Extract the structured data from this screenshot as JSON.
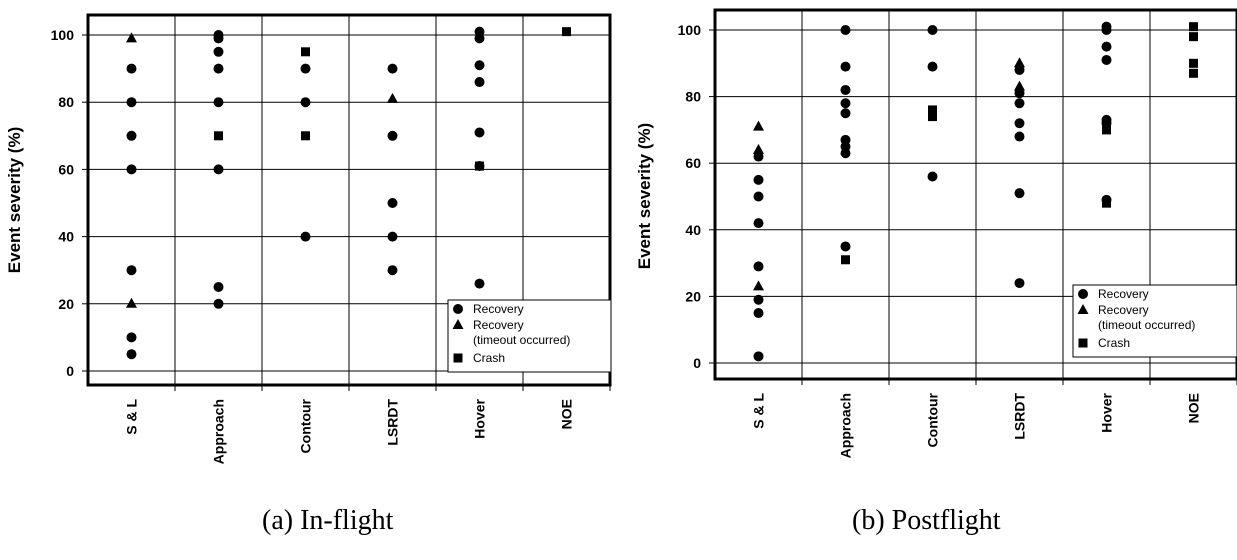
{
  "chart_data": [
    {
      "type": "scatter",
      "title": "",
      "caption": "(a)  In-flight",
      "xlabel": "",
      "ylabel": "Event severity (%)",
      "ylim": [
        0,
        100
      ],
      "yticks": [
        "0",
        "20",
        "40",
        "60",
        "80",
        "100"
      ],
      "categories": [
        "S & L",
        "Approach",
        "Contour",
        "LSRDT",
        "Hover",
        "NOE"
      ],
      "grid": true,
      "legend_position": "bottom-right",
      "series": [
        {
          "name": "Recovery",
          "marker": "circle",
          "points": [
            {
              "x": "S & L",
              "y": 5
            },
            {
              "x": "S & L",
              "y": 10
            },
            {
              "x": "S & L",
              "y": 30
            },
            {
              "x": "S & L",
              "y": 60
            },
            {
              "x": "S & L",
              "y": 70
            },
            {
              "x": "S & L",
              "y": 80
            },
            {
              "x": "S & L",
              "y": 90
            },
            {
              "x": "Approach",
              "y": 20
            },
            {
              "x": "Approach",
              "y": 25
            },
            {
              "x": "Approach",
              "y": 60
            },
            {
              "x": "Approach",
              "y": 80
            },
            {
              "x": "Approach",
              "y": 90
            },
            {
              "x": "Approach",
              "y": 95
            },
            {
              "x": "Approach",
              "y": 99
            },
            {
              "x": "Approach",
              "y": 100
            },
            {
              "x": "Contour",
              "y": 40
            },
            {
              "x": "Contour",
              "y": 80
            },
            {
              "x": "Contour",
              "y": 90
            },
            {
              "x": "LSRDT",
              "y": 30
            },
            {
              "x": "LSRDT",
              "y": 40
            },
            {
              "x": "LSRDT",
              "y": 50
            },
            {
              "x": "LSRDT",
              "y": 70
            },
            {
              "x": "LSRDT",
              "y": 90
            },
            {
              "x": "Hover",
              "y": 26
            },
            {
              "x": "Hover",
              "y": 61
            },
            {
              "x": "Hover",
              "y": 71
            },
            {
              "x": "Hover",
              "y": 86
            },
            {
              "x": "Hover",
              "y": 91
            },
            {
              "x": "Hover",
              "y": 99
            },
            {
              "x": "Hover",
              "y": 101
            }
          ]
        },
        {
          "name": "Recovery (timeout occurred)",
          "marker": "triangle",
          "points": [
            {
              "x": "S & L",
              "y": 20
            },
            {
              "x": "S & L",
              "y": 99
            },
            {
              "x": "LSRDT",
              "y": 81
            }
          ]
        },
        {
          "name": "Crash",
          "marker": "square",
          "points": [
            {
              "x": "Approach",
              "y": 70
            },
            {
              "x": "Contour",
              "y": 70
            },
            {
              "x": "Contour",
              "y": 95
            },
            {
              "x": "Hover",
              "y": 61
            },
            {
              "x": "NOE",
              "y": 101
            }
          ]
        }
      ],
      "legend": [
        "Recovery",
        "Recovery",
        "(timeout occurred)",
        "Crash"
      ]
    },
    {
      "type": "scatter",
      "title": "",
      "caption": "(b)  Postflight",
      "xlabel": "",
      "ylabel": "Event severity (%)",
      "ylim": [
        0,
        100
      ],
      "yticks": [
        "0",
        "20",
        "40",
        "60",
        "80",
        "100"
      ],
      "categories": [
        "S & L",
        "Approach",
        "Contour",
        "LSRDT",
        "Hover",
        "NOE"
      ],
      "grid": true,
      "legend_position": "bottom-right",
      "series": [
        {
          "name": "Recovery",
          "marker": "circle",
          "points": [
            {
              "x": "S & L",
              "y": 2
            },
            {
              "x": "S & L",
              "y": 15
            },
            {
              "x": "S & L",
              "y": 19
            },
            {
              "x": "S & L",
              "y": 29
            },
            {
              "x": "S & L",
              "y": 42
            },
            {
              "x": "S & L",
              "y": 50
            },
            {
              "x": "S & L",
              "y": 55
            },
            {
              "x": "S & L",
              "y": 62
            },
            {
              "x": "Approach",
              "y": 35
            },
            {
              "x": "Approach",
              "y": 63
            },
            {
              "x": "Approach",
              "y": 65
            },
            {
              "x": "Approach",
              "y": 67
            },
            {
              "x": "Approach",
              "y": 75
            },
            {
              "x": "Approach",
              "y": 78
            },
            {
              "x": "Approach",
              "y": 82
            },
            {
              "x": "Approach",
              "y": 89
            },
            {
              "x": "Approach",
              "y": 100
            },
            {
              "x": "Contour",
              "y": 56
            },
            {
              "x": "Contour",
              "y": 89
            },
            {
              "x": "Contour",
              "y": 100
            },
            {
              "x": "LSRDT",
              "y": 24
            },
            {
              "x": "LSRDT",
              "y": 51
            },
            {
              "x": "LSRDT",
              "y": 68
            },
            {
              "x": "LSRDT",
              "y": 72
            },
            {
              "x": "LSRDT",
              "y": 78
            },
            {
              "x": "LSRDT",
              "y": 81
            },
            {
              "x": "LSRDT",
              "y": 88
            },
            {
              "x": "Hover",
              "y": 49
            },
            {
              "x": "Hover",
              "y": 72
            },
            {
              "x": "Hover",
              "y": 73
            },
            {
              "x": "Hover",
              "y": 91
            },
            {
              "x": "Hover",
              "y": 95
            },
            {
              "x": "Hover",
              "y": 100
            },
            {
              "x": "Hover",
              "y": 101
            }
          ]
        },
        {
          "name": "Recovery (timeout occurred)",
          "marker": "triangle",
          "points": [
            {
              "x": "S & L",
              "y": 23
            },
            {
              "x": "S & L",
              "y": 64
            },
            {
              "x": "S & L",
              "y": 71
            },
            {
              "x": "LSRDT",
              "y": 83
            },
            {
              "x": "LSRDT",
              "y": 90
            }
          ]
        },
        {
          "name": "Crash",
          "marker": "square",
          "points": [
            {
              "x": "Approach",
              "y": 31
            },
            {
              "x": "Contour",
              "y": 74
            },
            {
              "x": "Contour",
              "y": 76
            },
            {
              "x": "Hover",
              "y": 48
            },
            {
              "x": "Hover",
              "y": 70
            },
            {
              "x": "NOE",
              "y": 87
            },
            {
              "x": "NOE",
              "y": 90
            },
            {
              "x": "NOE",
              "y": 98
            },
            {
              "x": "NOE",
              "y": 101
            }
          ]
        }
      ],
      "legend": [
        "Recovery",
        "Recovery",
        "(timeout occurred)",
        "Crash"
      ]
    }
  ]
}
